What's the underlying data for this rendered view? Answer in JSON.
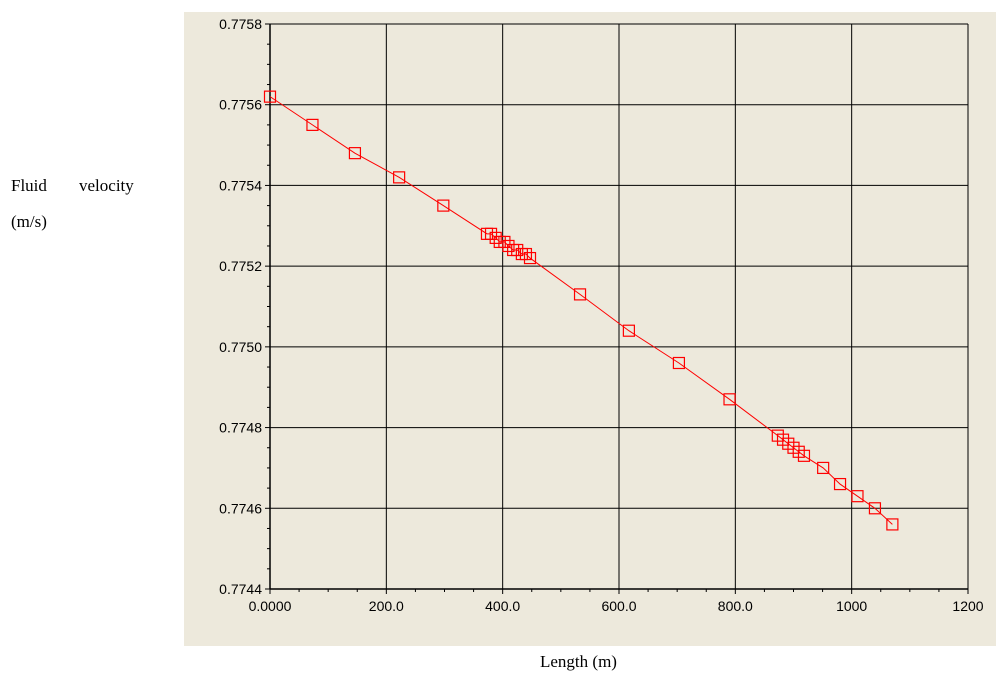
{
  "chart_data": {
    "type": "scatter",
    "xlabel": "Length (m)",
    "ylabel": "Fluid velocity (m/s)",
    "ylabel_words": [
      "Fluid",
      "velocity",
      "(m/s)"
    ],
    "xlim": [
      0,
      1200
    ],
    "ylim": [
      0.7744,
      0.7758
    ],
    "grid": true,
    "xticks": [
      0,
      200,
      400,
      600,
      800,
      1000,
      1200
    ],
    "xtick_labels": [
      "0.0000",
      "200.0",
      "400.0",
      "600.0",
      "800.0",
      "1000",
      "1200"
    ],
    "yticks": [
      0.7744,
      0.7746,
      0.7748,
      0.775,
      0.7752,
      0.7754,
      0.7756,
      0.7758
    ],
    "ytick_labels": [
      "0.7744",
      "0.7746",
      "0.7748",
      "0.7750",
      "0.7752",
      "0.7754",
      "0.7756",
      "0.7758"
    ],
    "colors": {
      "plot_bg": "#ede9dc",
      "series": "#ff0000",
      "grid": "#000000"
    },
    "series": [
      {
        "marker": "square",
        "x": [
          0,
          73,
          146,
          222,
          298,
          373,
          380,
          388,
          395,
          403,
          410,
          418,
          425,
          433,
          440,
          447,
          533,
          617,
          703,
          790,
          873,
          882,
          891,
          900,
          909,
          918,
          951,
          980,
          1010,
          1040,
          1070
        ],
        "y": [
          0.77562,
          0.77555,
          0.77548,
          0.77542,
          0.77535,
          0.77528,
          0.77528,
          0.77527,
          0.77526,
          0.77526,
          0.77525,
          0.77524,
          0.77524,
          0.77523,
          0.77523,
          0.77522,
          0.77513,
          0.77504,
          0.77496,
          0.77487,
          0.77478,
          0.77477,
          0.77476,
          0.77475,
          0.77474,
          0.77473,
          0.7747,
          0.77466,
          0.77463,
          0.7746,
          0.77456
        ]
      }
    ]
  }
}
